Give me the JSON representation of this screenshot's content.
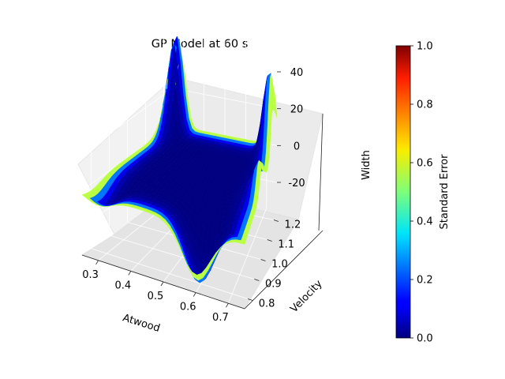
{
  "chart_data": {
    "type": "surface3d",
    "title": "GP Model at 60 s",
    "xlabel": "Atwood",
    "ylabel": "Velocity",
    "zlabel": "Width",
    "x_ticks": [
      0.3,
      0.4,
      0.5,
      0.6,
      0.7
    ],
    "y_ticks": [
      0.8,
      0.9,
      1.0,
      1.1,
      1.2
    ],
    "z_ticks": [
      -20,
      0,
      20,
      40
    ],
    "xlim": [
      0.25,
      0.75
    ],
    "ylim": [
      0.75,
      1.25
    ],
    "zlim": [
      -35,
      55
    ],
    "colorbar": {
      "label": "Standard Error",
      "colormap": "jet",
      "range": [
        0.0,
        1.0
      ],
      "ticks": [
        "0.0",
        "0.2",
        "0.4",
        "0.6",
        "0.8",
        "1.0"
      ]
    }
  }
}
